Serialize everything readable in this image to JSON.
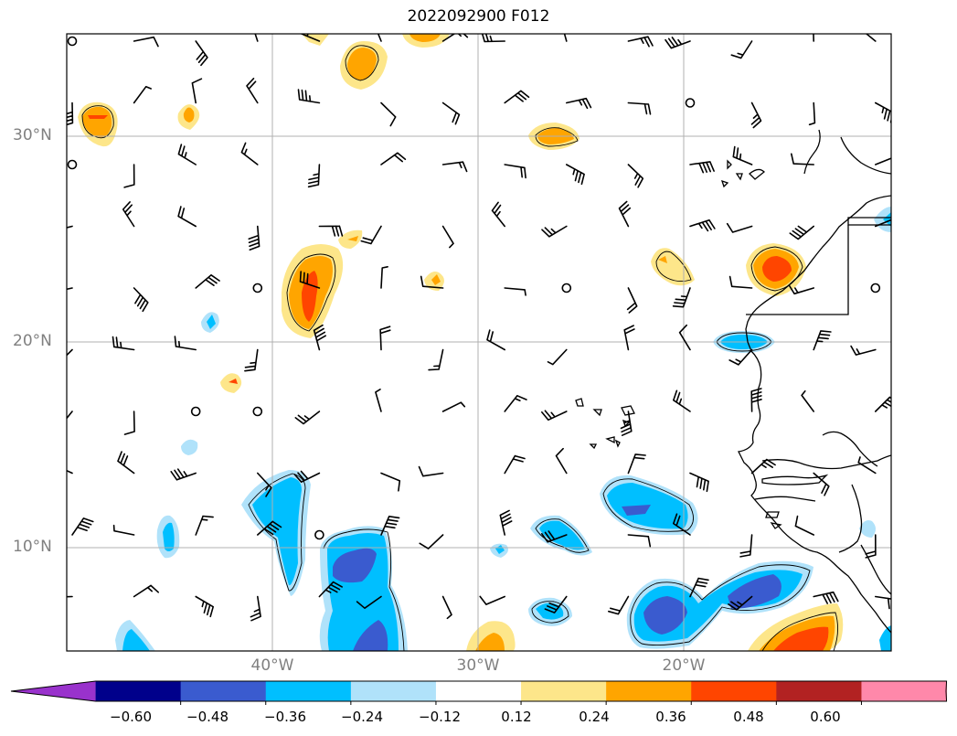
{
  "title": "2022092900 F012",
  "lat_labels": [
    {
      "text": "30°N",
      "lat": 30
    },
    {
      "text": "20°N",
      "lat": 20
    },
    {
      "text": "10°N",
      "lat": 10
    }
  ],
  "lon_labels": [
    {
      "text": "40°W",
      "lon": -40
    },
    {
      "text": "30°W",
      "lon": -30
    },
    {
      "text": "20°W",
      "lon": -20
    }
  ],
  "colorbar": {
    "ticks": [
      "−0.60",
      "−0.48",
      "−0.36",
      "−0.24",
      "−0.12",
      "0.12",
      "0.24",
      "0.36",
      "0.48",
      "0.60"
    ],
    "colors": [
      "#9932cc",
      "#00008b",
      "#3a5bcf",
      "#00bfff",
      "#b0e2fa",
      "#ffffff",
      "#fde68a",
      "#ffa500",
      "#ff4500",
      "#b22222",
      "#ff88aa"
    ]
  },
  "colors": {
    "grid": "#b0b0b0",
    "coast": "#000000",
    "barb": "#000000"
  }
}
